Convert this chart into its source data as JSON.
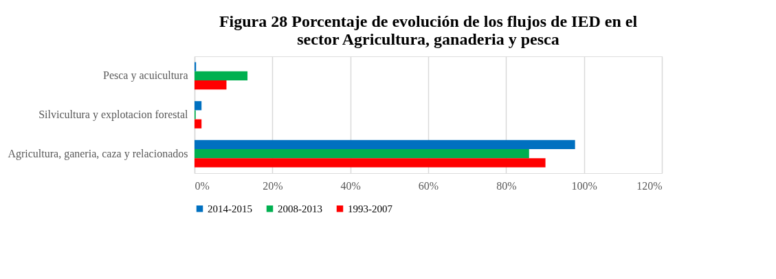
{
  "chart_data": {
    "type": "bar",
    "orientation": "horizontal",
    "title": [
      "Figura 28  Porcentaje de evolución de los flujos de IED en el",
      "sector Agricultura, ganaderia y pesca"
    ],
    "categories": [
      "Pesca y acuicultura",
      "Silvicultura y explotacion forestal",
      "Agricultura, ganeria, caza y relacionados"
    ],
    "series": [
      {
        "name": "2014-2015",
        "color": "#0070c0",
        "values": [
          0.4,
          1.8,
          97.7
        ]
      },
      {
        "name": "2008-2013",
        "color": "#00b050",
        "values": [
          13.6,
          0.3,
          85.9
        ]
      },
      {
        "name": "1993-2007",
        "color": "#ff0000",
        "values": [
          8.2,
          1.8,
          90.1
        ]
      }
    ],
    "xlim": [
      0,
      120
    ],
    "xticks": [
      {
        "value": 0,
        "label": "0%"
      },
      {
        "value": 20,
        "label": "20%"
      },
      {
        "value": 40,
        "label": "40%"
      },
      {
        "value": 60,
        "label": "60%"
      },
      {
        "value": 80,
        "label": "80%"
      },
      {
        "value": 100,
        "label": "100%"
      },
      {
        "value": 120,
        "label": "120%"
      }
    ],
    "grid": "x",
    "legend": "bottom"
  }
}
